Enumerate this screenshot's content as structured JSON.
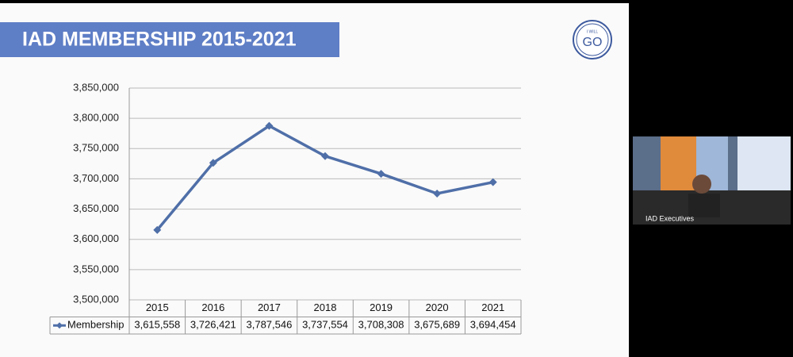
{
  "chart_data": {
    "type": "line",
    "title": "IAD MEMBERSHIP 2015-2021",
    "categories": [
      "2015",
      "2016",
      "2017",
      "2018",
      "2019",
      "2020",
      "2021"
    ],
    "series": [
      {
        "name": "Membership",
        "color": "#4f6fa8",
        "values": [
          3615558,
          3726421,
          3787546,
          3737554,
          3708308,
          3675689,
          3694454
        ],
        "value_labels": [
          "3,615,558",
          "3,726,421",
          "3,787,546",
          "3,737,554",
          "3,708,308",
          "3,675,689",
          "3,694,454"
        ]
      }
    ],
    "ylim": [
      3500000,
      3850000
    ],
    "yticks": [
      {
        "value": 3500000,
        "label": "3,500,000"
      },
      {
        "value": 3550000,
        "label": "3,550,000"
      },
      {
        "value": 3600000,
        "label": "3,600,000"
      },
      {
        "value": 3650000,
        "label": "3,650,000"
      },
      {
        "value": 3700000,
        "label": "3,700,000"
      },
      {
        "value": 3750000,
        "label": "3,750,000"
      },
      {
        "value": 3800000,
        "label": "3,800,000"
      },
      {
        "value": 3850000,
        "label": "3,850,000"
      }
    ],
    "grid": true,
    "data_table": true
  },
  "logo": {
    "small": "I WILL",
    "big": "GO"
  },
  "participant": {
    "name": "IAD Executives"
  }
}
